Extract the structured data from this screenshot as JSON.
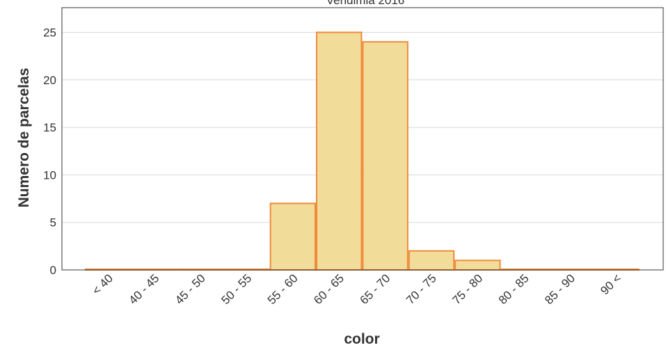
{
  "chart_data": {
    "type": "bar",
    "title": "Vendimia 2016",
    "xlabel": "color",
    "ylabel": "Numero de parcelas",
    "categories": [
      "< 40",
      "40 - 45",
      "45 - 50",
      "50 - 55",
      "55 - 60",
      "60 - 65",
      "65 - 70",
      "70 - 75",
      "75 - 80",
      "80 - 85",
      "85 - 90",
      "90 <"
    ],
    "values": [
      0,
      0,
      0,
      0,
      7,
      25,
      24,
      2,
      1,
      0,
      0,
      0
    ],
    "yticks": [
      "0",
      "5",
      "10",
      "15",
      "20",
      "25"
    ],
    "ylim": [
      0,
      27.6
    ],
    "grid": true,
    "legend": "none",
    "colors": {
      "bar_fill": "#f2dc99",
      "bar_stroke": "#ee8a3a",
      "grid": "#d8d8d8",
      "axis": "#333333",
      "text": "#333333"
    }
  }
}
